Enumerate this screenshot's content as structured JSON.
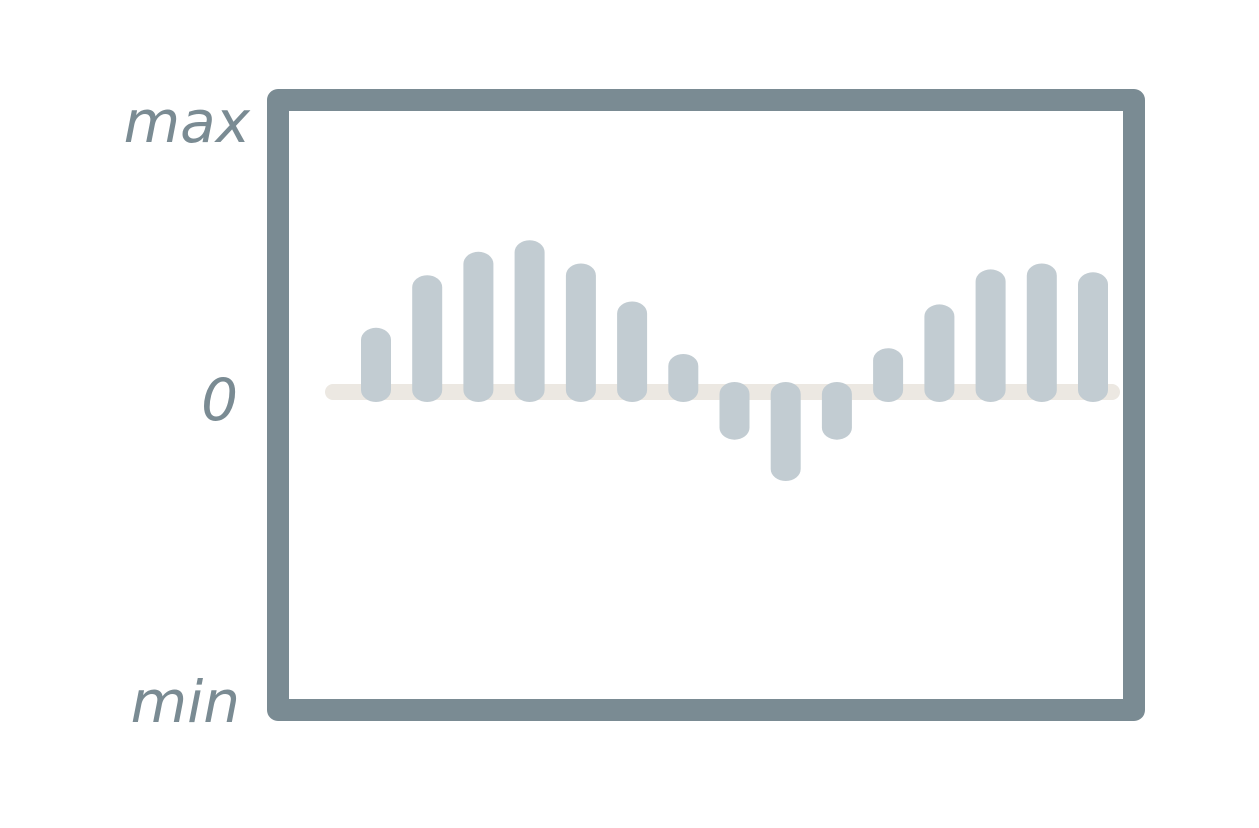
{
  "chart_data": {
    "type": "bar",
    "title": "",
    "xlabel": "",
    "ylabel": "",
    "y_tick_labels": {
      "max": "max",
      "zero": "0",
      "min": "min"
    },
    "ylim": [
      -100,
      100
    ],
    "grid": false,
    "legend": "none",
    "values": [
      22,
      40,
      48,
      52,
      44,
      31,
      13,
      -15,
      -28,
      -15,
      15,
      30,
      42,
      44,
      41
    ],
    "colors": {
      "frame": "#7a8b93",
      "bar": "#c2ccd2",
      "zero_line": "#ece8e2",
      "label": "#7a8b93"
    }
  }
}
